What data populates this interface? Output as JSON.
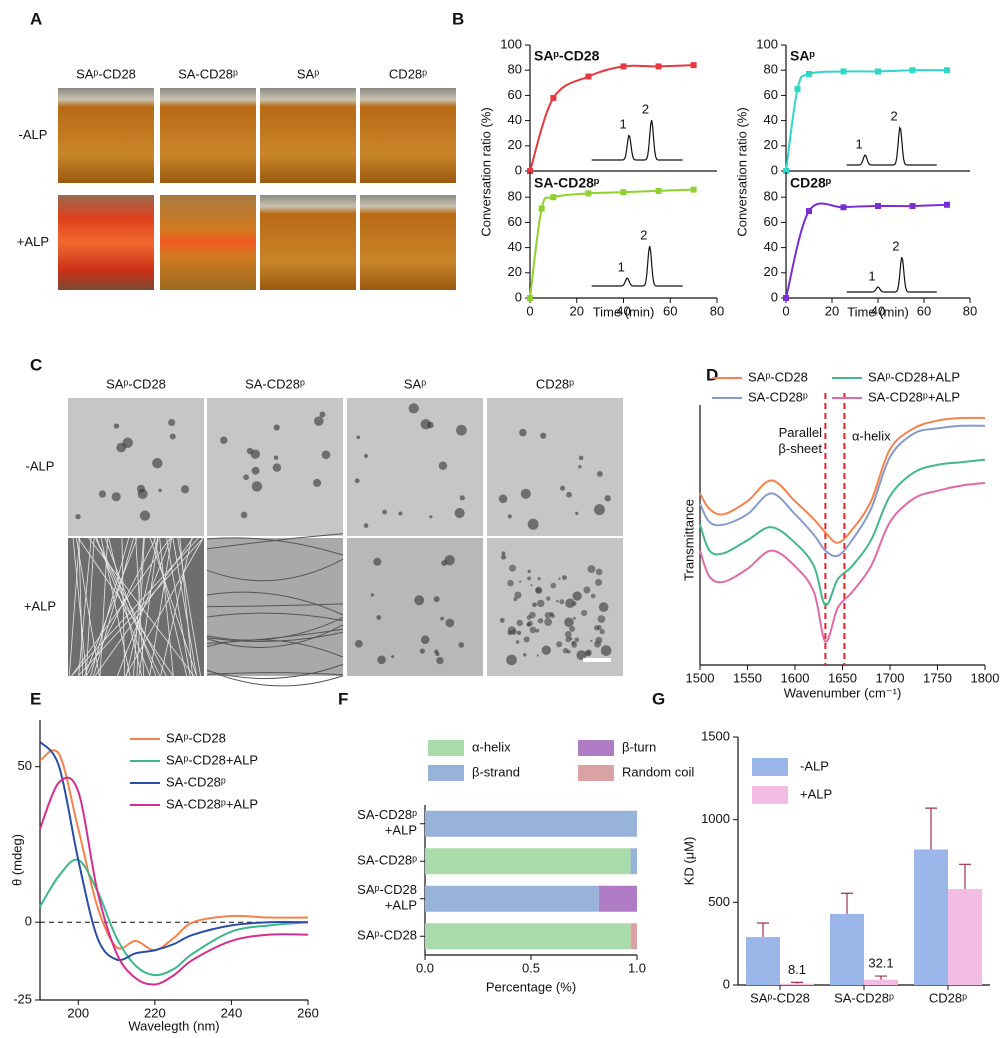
{
  "panel_labels": [
    "A",
    "B",
    "C",
    "D",
    "E",
    "F",
    "G"
  ],
  "photos_a": {
    "columns": [
      "SAᵖ-CD28",
      "SA-CD28ᵖ",
      "SAᵖ",
      "CD28ᵖ"
    ],
    "rows": [
      "-ALP",
      "+ALP"
    ]
  },
  "photos_c": {
    "columns": [
      "SAᵖ-CD28",
      "SA-CD28ᵖ",
      "SAᵖ",
      "CD28ᵖ"
    ],
    "rows": [
      "-ALP",
      "+ALP"
    ]
  },
  "chart_data": [
    {
      "type": "line",
      "title": "SAᵖ-CD28",
      "x": [
        0,
        10,
        25,
        40,
        55,
        70
      ],
      "values": [
        0,
        58,
        75,
        83,
        83,
        84
      ],
      "color": "#e8383f",
      "markers": true,
      "xlim": [
        0,
        80
      ],
      "ylim": [
        0,
        100
      ],
      "yticks": [
        0,
        20,
        40,
        60,
        80,
        100
      ],
      "ylabel": "Conversation ratio (%)",
      "annotations": [
        "1",
        "2"
      ]
    },
    {
      "type": "line",
      "title": "SA-CD28ᵖ",
      "x": [
        0,
        5,
        10,
        25,
        40,
        55,
        70
      ],
      "values": [
        0,
        71,
        80,
        83,
        84,
        85,
        86
      ],
      "color": "#8fd12e",
      "markers": true,
      "xlim": [
        0,
        80
      ],
      "xticks": [
        0,
        20,
        40,
        60,
        80
      ],
      "ylim": [
        0,
        100
      ],
      "yticks": [
        0,
        20,
        40,
        60,
        80
      ],
      "xlabel": "Time (min)",
      "annotations": [
        "1",
        "2"
      ]
    },
    {
      "type": "line",
      "title": "SAᵖ",
      "x": [
        0,
        5,
        10,
        25,
        40,
        55,
        70
      ],
      "values": [
        0,
        65,
        77,
        79,
        79,
        80,
        80
      ],
      "color": "#2ed8c8",
      "markers": true,
      "xlim": [
        0,
        80
      ],
      "ylim": [
        0,
        100
      ],
      "yticks": [
        0,
        20,
        40,
        60,
        80,
        100
      ],
      "ylabel": "Conversation ratio (%)",
      "annotations": [
        "1",
        "2"
      ]
    },
    {
      "type": "line",
      "title": "CD28ᵖ",
      "x": [
        0,
        10,
        25,
        40,
        55,
        70
      ],
      "values": [
        0,
        69,
        72,
        73,
        73,
        74
      ],
      "color": "#7a2fd6",
      "markers": true,
      "xlim": [
        0,
        80
      ],
      "xticks": [
        0,
        20,
        40,
        60,
        80
      ],
      "ylim": [
        0,
        100
      ],
      "yticks": [
        0,
        20,
        40,
        60,
        80
      ],
      "xlabel": "Time (min)",
      "annotations": [
        "1",
        "2"
      ]
    },
    {
      "type": "line",
      "x": [
        1500,
        1510,
        1525,
        1550,
        1575,
        1600,
        1620,
        1632,
        1645,
        1660,
        1680,
        1700,
        1725,
        1750,
        1775,
        1800
      ],
      "series": [
        {
          "name": "SAᵖ-CD28",
          "color": "#f4824a",
          "values": [
            66,
            60,
            58,
            63,
            71,
            63,
            56,
            51,
            47,
            52,
            63,
            83,
            91,
            94,
            95,
            95
          ]
        },
        {
          "name": "SA-CD28ᵖ",
          "color": "#8899cc",
          "values": [
            62,
            55,
            54,
            58,
            66,
            58,
            50,
            44,
            42,
            48,
            60,
            80,
            89,
            91,
            92,
            92
          ]
        },
        {
          "name": "SAᵖ-CD28+ALP",
          "color": "#44b88a",
          "values": [
            54,
            44,
            43,
            48,
            53,
            47,
            38,
            23,
            33,
            38,
            48,
            65,
            74,
            77,
            78,
            79
          ]
        },
        {
          "name": "SA-CD28ᵖ+ALP",
          "color": "#e06aa8",
          "values": [
            44,
            34,
            32,
            37,
            44,
            38,
            28,
            9,
            22,
            28,
            38,
            55,
            64,
            67,
            69,
            70
          ]
        }
      ],
      "xlim": [
        1500,
        1800
      ],
      "xticks": [
        1500,
        1550,
        1600,
        1650,
        1700,
        1750,
        1800
      ],
      "ylim": [
        0,
        100
      ],
      "xlabel": "Wavenumber (cm⁻¹)",
      "ylabel": "Transmittance",
      "vlines": [
        1632,
        1652
      ],
      "vline_color": "#e8202a",
      "annotations": [
        "Parallel\nβ-sheet",
        "α-helix"
      ],
      "legend": "top"
    },
    {
      "type": "line",
      "x": [
        190,
        195,
        200,
        205,
        210,
        215,
        220,
        225,
        230,
        240,
        250,
        260
      ],
      "series": [
        {
          "name": "SAᵖ-CD28",
          "color": "#f4824a",
          "values": [
            52,
            54,
            30,
            5,
            -8,
            -6,
            -9,
            -5,
            0,
            2,
            1.5,
            1.5
          ]
        },
        {
          "name": "SAᵖ-CD28+ALP",
          "color": "#3cb88a",
          "values": [
            5,
            15,
            20,
            10,
            -5,
            -14,
            -17,
            -15,
            -10,
            -3,
            -1,
            0
          ]
        },
        {
          "name": "SA-CD28ᵖ",
          "color": "#2a4ea8",
          "values": [
            58,
            50,
            20,
            -5,
            -12,
            -10,
            -9,
            -7,
            -4,
            -1,
            0,
            0
          ]
        },
        {
          "name": "SA-CD28ᵖ+ALP",
          "color": "#d03090",
          "values": [
            30,
            45,
            42,
            10,
            -10,
            -18,
            -20,
            -17,
            -12,
            -6,
            -4,
            -4
          ]
        }
      ],
      "xlim": [
        190,
        260
      ],
      "xticks": [
        200,
        220,
        240,
        260
      ],
      "ylim": [
        -25,
        65
      ],
      "yticks": [
        -25,
        0,
        50
      ],
      "xlabel": "Wavelegth (nm)",
      "ylabel": "θ (mdeg)",
      "reference_line": 0,
      "legend": "upper right"
    },
    {
      "type": "stacked_barh",
      "categories": [
        "SA-CD28ᵖ\n+ALP",
        "SA-CD28ᵖ",
        "SAᵖ-CD28\n+ALP",
        "SAᵖ-CD28"
      ],
      "series": [
        {
          "name": "α-helix",
          "color": "#a9dcaa",
          "values": [
            0,
            0.97,
            0,
            0.97
          ]
        },
        {
          "name": "β-strand",
          "color": "#97b3d9",
          "values": [
            1,
            0.03,
            0.82,
            0
          ]
        },
        {
          "name": "β-turn",
          "color": "#b07cc6",
          "values": [
            0,
            0,
            0.18,
            0
          ]
        },
        {
          "name": "Random coil",
          "color": "#d9a3a3",
          "values": [
            0,
            0,
            0,
            0.03
          ]
        }
      ],
      "xlim": [
        0,
        1
      ],
      "xticks": [
        {
          "value": 0,
          "label": "0.0"
        },
        {
          "value": 0.5,
          "label": "0.5"
        },
        {
          "value": 1,
          "label": "1.0"
        }
      ],
      "xlabel": "Percentage (%)",
      "legend": "top"
    },
    {
      "type": "grouped_bar",
      "categories": [
        "SAᵖ-CD28",
        "SA-CD28ᵖ",
        "CD28ᵖ"
      ],
      "series": [
        {
          "name": "-ALP",
          "color": "#9bb7ea",
          "values": [
            290,
            430,
            820
          ],
          "errors": [
            85,
            125,
            250
          ]
        },
        {
          "name": "+ALP",
          "color": "#f2bce3",
          "values": [
            8.1,
            32.1,
            580
          ],
          "value_labels": [
            "8.1",
            "32.1",
            null
          ],
          "errors": [
            8,
            22,
            150
          ]
        }
      ],
      "ylim": [
        0,
        1500
      ],
      "yticks": [
        0,
        500,
        1000,
        1500
      ],
      "ylabel": "KD (μM)",
      "legend": "upper left"
    }
  ]
}
